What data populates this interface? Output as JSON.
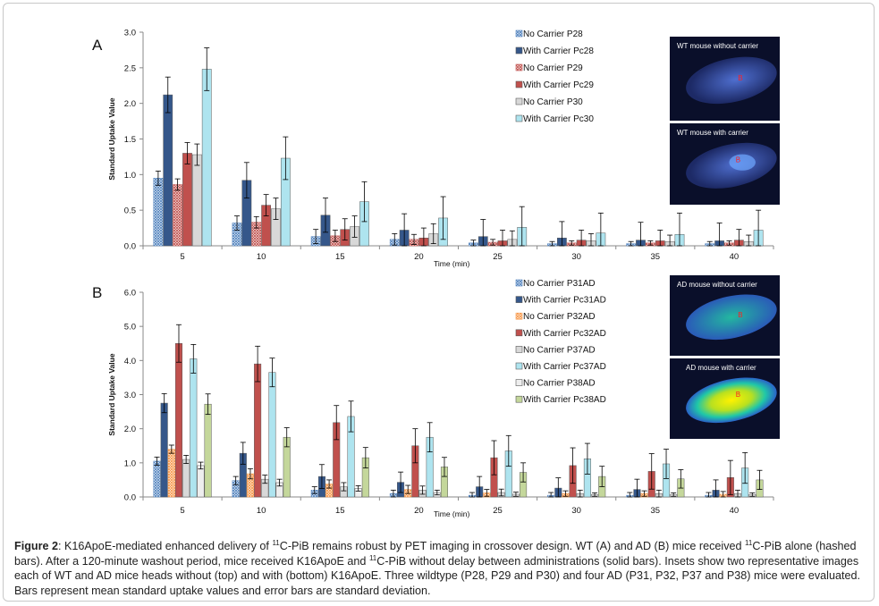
{
  "panels": [
    {
      "letter": "A",
      "type": "bar",
      "ylabel": "Standard Uptake Value",
      "xlabel": "Time (min)",
      "ylim": [
        0,
        3.0
      ],
      "yticks": [
        "0.0",
        "0.5",
        "1.0",
        "1.5",
        "2.0",
        "2.5",
        "3.0"
      ],
      "ytick_values": [
        0,
        0.5,
        1.0,
        1.5,
        2.0,
        2.5,
        3.0
      ],
      "categories": [
        "5",
        "10",
        "15",
        "20",
        "25",
        "30",
        "35",
        "40"
      ],
      "series": [
        {
          "name": "No Carrier P28",
          "color": "#4f81bd",
          "hatched": true,
          "values": [
            0.95,
            0.32,
            0.13,
            0.09,
            0.04,
            0.03,
            0.03,
            0.03
          ],
          "errors": [
            0.1,
            0.1,
            0.1,
            0.08,
            0.04,
            0.03,
            0.03,
            0.03
          ]
        },
        {
          "name": "With Carrier Pc28",
          "color": "#35578a",
          "hatched": false,
          "values": [
            2.12,
            0.92,
            0.43,
            0.22,
            0.13,
            0.11,
            0.08,
            0.07
          ],
          "errors": [
            0.25,
            0.25,
            0.24,
            0.23,
            0.24,
            0.23,
            0.25,
            0.25
          ]
        },
        {
          "name": "No Carrier P29",
          "color": "#c0504d",
          "hatched": true,
          "values": [
            0.86,
            0.33,
            0.14,
            0.09,
            0.05,
            0.04,
            0.04,
            0.04
          ],
          "errors": [
            0.08,
            0.08,
            0.08,
            0.07,
            0.04,
            0.03,
            0.03,
            0.03
          ]
        },
        {
          "name": "With Carrier Pc29",
          "color": "#c0504d",
          "hatched": false,
          "values": [
            1.3,
            0.57,
            0.23,
            0.11,
            0.07,
            0.08,
            0.07,
            0.08
          ],
          "errors": [
            0.15,
            0.15,
            0.15,
            0.14,
            0.15,
            0.14,
            0.15,
            0.15
          ]
        },
        {
          "name": "No Carrier P30",
          "color": "#d8d8d8",
          "hatched": false,
          "values": [
            1.28,
            0.52,
            0.27,
            0.17,
            0.09,
            0.07,
            0.06,
            0.06
          ],
          "errors": [
            0.15,
            0.15,
            0.15,
            0.14,
            0.12,
            0.1,
            0.09,
            0.09
          ]
        },
        {
          "name": "With Carrier Pc30",
          "color": "#aee4ef",
          "hatched": false,
          "values": [
            2.48,
            1.23,
            0.62,
            0.39,
            0.26,
            0.18,
            0.16,
            0.22
          ],
          "errors": [
            0.3,
            0.3,
            0.28,
            0.3,
            0.29,
            0.28,
            0.3,
            0.28
          ]
        }
      ],
      "inset_top_label": "WT mouse without carrier",
      "inset_bottom_label": "WT mouse with carrier",
      "inset_marker": "B"
    },
    {
      "letter": "B",
      "type": "bar",
      "ylabel": "Standard Uptake Value",
      "xlabel": "Time (min)",
      "ylim": [
        0,
        6.0
      ],
      "yticks": [
        "0.0",
        "1.0",
        "2.0",
        "3.0",
        "4.0",
        "5.0",
        "6.0"
      ],
      "ytick_values": [
        0,
        1.0,
        2.0,
        3.0,
        4.0,
        5.0,
        6.0
      ],
      "categories": [
        "5",
        "10",
        "15",
        "20",
        "25",
        "30",
        "35",
        "40"
      ],
      "series": [
        {
          "name": "No Carrier P31AD",
          "color": "#4f81bd",
          "hatched": true,
          "values": [
            1.05,
            0.48,
            0.2,
            0.1,
            0.05,
            0.05,
            0.05,
            0.05
          ],
          "errors": [
            0.12,
            0.12,
            0.1,
            0.1,
            0.08,
            0.08,
            0.08,
            0.08
          ]
        },
        {
          "name": "With Carrier Pc31AD",
          "color": "#35578a",
          "hatched": false,
          "values": [
            2.75,
            1.28,
            0.6,
            0.43,
            0.3,
            0.26,
            0.22,
            0.2
          ],
          "errors": [
            0.28,
            0.32,
            0.35,
            0.3,
            0.3,
            0.3,
            0.3,
            0.3
          ]
        },
        {
          "name": "No Carrier P32AD",
          "color": "#f79646",
          "hatched": true,
          "values": [
            1.4,
            0.68,
            0.38,
            0.22,
            0.12,
            0.1,
            0.1,
            0.08
          ],
          "errors": [
            0.12,
            0.15,
            0.12,
            0.12,
            0.1,
            0.08,
            0.08,
            0.08
          ]
        },
        {
          "name": "With Carrier Pc32AD",
          "color": "#c0504d",
          "hatched": false,
          "values": [
            4.5,
            3.9,
            2.18,
            1.5,
            1.15,
            0.92,
            0.75,
            0.57
          ],
          "errors": [
            0.55,
            0.52,
            0.5,
            0.5,
            0.5,
            0.52,
            0.52,
            0.5
          ]
        },
        {
          "name": "No Carrier P37AD",
          "color": "#d8d8d8",
          "hatched": false,
          "values": [
            1.1,
            0.52,
            0.3,
            0.2,
            0.13,
            0.1,
            0.1,
            0.1
          ],
          "errors": [
            0.12,
            0.12,
            0.12,
            0.12,
            0.1,
            0.1,
            0.1,
            0.1
          ]
        },
        {
          "name": "With Carrier Pc37AD",
          "color": "#aee4ef",
          "hatched": false,
          "values": [
            4.05,
            3.65,
            2.36,
            1.75,
            1.35,
            1.12,
            0.97,
            0.85
          ],
          "errors": [
            0.42,
            0.42,
            0.45,
            0.43,
            0.45,
            0.45,
            0.43,
            0.45
          ]
        },
        {
          "name": "No Carrier P38AD",
          "color": "#eeeeee",
          "hatched": false,
          "values": [
            0.92,
            0.42,
            0.25,
            0.13,
            0.08,
            0.07,
            0.07,
            0.07
          ],
          "errors": [
            0.1,
            0.1,
            0.08,
            0.07,
            0.06,
            0.05,
            0.05,
            0.05
          ]
        },
        {
          "name": "With Carrier Pc38AD",
          "color": "#c4d79b",
          "hatched": false,
          "values": [
            2.72,
            1.75,
            1.15,
            0.88,
            0.72,
            0.6,
            0.53,
            0.5
          ],
          "errors": [
            0.3,
            0.28,
            0.3,
            0.28,
            0.28,
            0.3,
            0.27,
            0.28
          ]
        }
      ],
      "inset_top_label": "AD mouse without carrier",
      "inset_bottom_label": "AD mouse with carrier",
      "inset_marker": "B"
    }
  ],
  "caption": {
    "label": "Figure 2",
    "text_1": ": K16ApoE-mediated enhanced delivery of ",
    "sup_1": "11",
    "text_2": "C-PiB remains robust by PET imaging in crossover design. WT (A) and AD (B) mice received ",
    "sup_2": "11",
    "text_3": "C-PiB alone (hashed bars). After a 120-minute washout period, mice received K16ApoE and ",
    "sup_3": "11",
    "text_4": "C-PiB without delay between administrations (solid bars). Insets show two representative images each of WT and AD mice heads without (top) and with (bottom) K16ApoE. Three wildtype (P28, P29 and P30) and four AD (P31, P32, P37 and P38) mice were evaluated. Bars represent mean standard uptake values and error bars are standard deviation."
  }
}
